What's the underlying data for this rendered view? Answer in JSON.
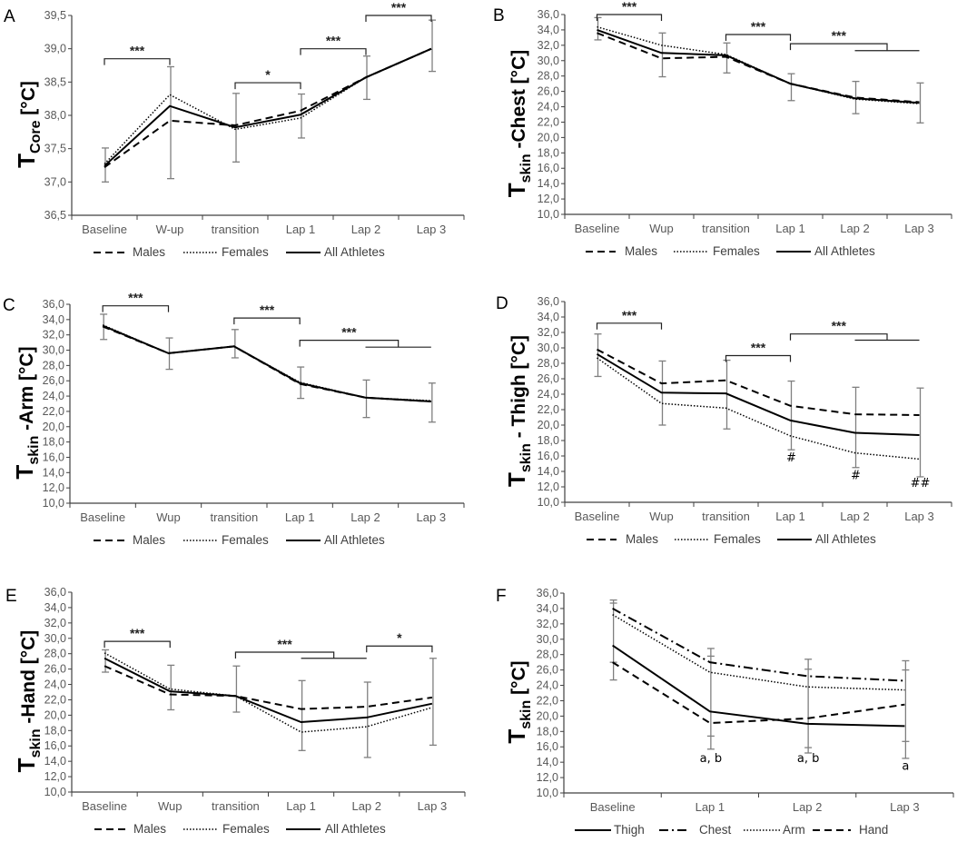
{
  "chart_data": [
    {
      "panel": "A",
      "type": "line",
      "ylabel": {
        "main": "T",
        "sub": "Core",
        "rest": " [°C]"
      },
      "ylim": [
        36.5,
        39.5
      ],
      "yticks": [
        "36,5",
        "37,0",
        "37,5",
        "38,0",
        "38,5",
        "39,0",
        "39,5"
      ],
      "categories": [
        "Baseline",
        "W-up",
        "transition",
        "Lap 1",
        "Lap 2",
        "Lap 3"
      ],
      "series": [
        {
          "name": "Males",
          "style": "dashed",
          "values": [
            37.22,
            37.92,
            37.85,
            38.07,
            38.57,
            39.0
          ]
        },
        {
          "name": "Females",
          "style": "dotted",
          "values": [
            37.27,
            38.31,
            37.79,
            37.96,
            38.57,
            39.0
          ]
        },
        {
          "name": "All Athletes",
          "style": "solid",
          "values": [
            37.24,
            38.14,
            37.82,
            38.01,
            38.57,
            39.0
          ]
        }
      ],
      "errors": [
        [
          37.0,
          37.51
        ],
        [
          37.05,
          38.73
        ],
        [
          37.3,
          38.33
        ],
        [
          37.66,
          38.32
        ],
        [
          38.24,
          38.89
        ],
        [
          38.66,
          39.43
        ]
      ],
      "brackets": [
        {
          "from": 0,
          "to": 1,
          "y": 38.85,
          "label": "***"
        },
        {
          "from": 2,
          "to": 3,
          "y": 38.49,
          "label": "*"
        },
        {
          "from": 3,
          "to": 4,
          "y": 39.0,
          "label": "***"
        },
        {
          "from": 4,
          "to": 5,
          "y": 39.5,
          "label": "***"
        }
      ],
      "annotations": []
    },
    {
      "panel": "B",
      "type": "line",
      "ylabel": {
        "main": "T",
        "sub": "skin",
        "rest": " -Chest [°C]"
      },
      "ylim": [
        10,
        36
      ],
      "yticks": [
        "10,0",
        "12,0",
        "14,0",
        "16,0",
        "18,0",
        "20,0",
        "22,0",
        "24,0",
        "26,0",
        "28,0",
        "30,0",
        "32,0",
        "34,0",
        "36,0"
      ],
      "categories": [
        "Baseline",
        "Wup",
        "transition",
        "Lap 1",
        "Lap 2",
        "Lap 3"
      ],
      "series": [
        {
          "name": "Males",
          "style": "dashed",
          "values": [
            33.6,
            30.3,
            30.5,
            27.0,
            25.2,
            24.6
          ]
        },
        {
          "name": "Females",
          "style": "dotted",
          "values": [
            34.4,
            32.0,
            30.8,
            27.0,
            25.0,
            24.4
          ]
        },
        {
          "name": "All Athletes",
          "style": "solid",
          "values": [
            34.0,
            31.0,
            30.7,
            27.0,
            25.1,
            24.5
          ]
        }
      ],
      "errors": [
        [
          32.7,
          35.6
        ],
        [
          27.9,
          33.6
        ],
        [
          28.4,
          32.3
        ],
        [
          24.8,
          28.3
        ],
        [
          23.1,
          27.3
        ],
        [
          21.9,
          27.1
        ]
      ],
      "brackets": [
        {
          "from": 0,
          "to": 1,
          "y": 36.0,
          "label": "***"
        },
        {
          "from": 2,
          "to": 3,
          "y": 33.4,
          "label": "***"
        },
        {
          "from": 3,
          "to": 4.5,
          "y": 32.2,
          "label": "***",
          "sub": {
            "from": 4,
            "to": 5,
            "y": 31.3
          }
        }
      ],
      "annotations": []
    },
    {
      "panel": "C",
      "type": "line",
      "ylabel": {
        "main": "T",
        "sub": "skin",
        "rest": " -Arm [°C]"
      },
      "ylim": [
        10,
        36
      ],
      "yticks": [
        "10,0",
        "12,0",
        "14,0",
        "16,0",
        "18,0",
        "20,0",
        "22,0",
        "24,0",
        "26,0",
        "28,0",
        "30,0",
        "32,0",
        "34,0",
        "36,0"
      ],
      "categories": [
        "Baseline",
        "Wup",
        "transition",
        "Lap 1",
        "Lap 2",
        "Lap 3"
      ],
      "series": [
        {
          "name": "Males",
          "style": "dashed",
          "values": [
            33.1,
            29.6,
            30.5,
            25.6,
            23.8,
            23.3
          ]
        },
        {
          "name": "Females",
          "style": "dotted",
          "values": [
            33.3,
            29.6,
            30.5,
            25.8,
            23.8,
            23.4
          ]
        },
        {
          "name": "All Athletes",
          "style": "solid",
          "values": [
            33.2,
            29.6,
            30.5,
            25.7,
            23.8,
            23.3
          ]
        }
      ],
      "errors": [
        [
          31.4,
          34.7
        ],
        [
          27.5,
          31.6
        ],
        [
          29.0,
          32.7
        ],
        [
          23.7,
          27.8
        ],
        [
          21.2,
          26.1
        ],
        [
          20.6,
          25.7
        ]
      ],
      "brackets": [
        {
          "from": 0,
          "to": 1,
          "y": 35.8,
          "label": "***"
        },
        {
          "from": 2,
          "to": 3,
          "y": 34.2,
          "label": "***"
        },
        {
          "from": 3,
          "to": 4.5,
          "y": 31.3,
          "label": "***",
          "sub": {
            "from": 4,
            "to": 5,
            "y": 30.4
          }
        }
      ],
      "annotations": []
    },
    {
      "panel": "D",
      "type": "line",
      "ylabel": {
        "main": "T",
        "sub": "skin",
        "rest": " - Thigh [°C]"
      },
      "ylim": [
        10,
        36
      ],
      "yticks": [
        "10,0",
        "12,0",
        "14,0",
        "16,0",
        "18,0",
        "20,0",
        "22,0",
        "24,0",
        "26,0",
        "28,0",
        "30,0",
        "32,0",
        "34,0",
        "36,0"
      ],
      "categories": [
        "Baseline",
        "Wup",
        "transition",
        "Lap 1",
        "Lap 2",
        "Lap 3"
      ],
      "series": [
        {
          "name": "Males",
          "style": "dashed",
          "values": [
            29.8,
            25.4,
            25.8,
            22.5,
            21.4,
            21.3
          ]
        },
        {
          "name": "Females",
          "style": "dotted",
          "values": [
            28.7,
            22.8,
            22.2,
            18.6,
            16.4,
            15.6
          ]
        },
        {
          "name": "All Athletes",
          "style": "solid",
          "values": [
            29.2,
            24.2,
            24.1,
            20.6,
            19.0,
            18.7
          ]
        }
      ],
      "errors": [
        [
          26.3,
          31.8
        ],
        [
          20.0,
          28.3
        ],
        [
          19.5,
          28.4
        ],
        [
          16.8,
          25.7
        ],
        [
          14.5,
          24.9
        ],
        [
          13.3,
          24.8
        ]
      ],
      "brackets": [
        {
          "from": 0,
          "to": 1,
          "y": 33.2,
          "label": "***"
        },
        {
          "from": 2,
          "to": 3,
          "y": 29.0,
          "label": "***"
        },
        {
          "from": 3,
          "to": 4.5,
          "y": 31.8,
          "label": "***",
          "sub": {
            "from": 4,
            "to": 5,
            "y": 31.0
          }
        }
      ],
      "annotations": [
        {
          "cat": 3,
          "y": 15.3,
          "text": "#"
        },
        {
          "cat": 4,
          "y": 13.0,
          "text": "#"
        },
        {
          "cat": 5,
          "y": 12.0,
          "text": "##"
        }
      ]
    },
    {
      "panel": "E",
      "type": "line",
      "ylabel": {
        "main": "T",
        "sub": "skin",
        "rest": " -Hand [°C]"
      },
      "ylim": [
        10,
        36
      ],
      "yticks": [
        "10,0",
        "12,0",
        "14,0",
        "16,0",
        "18,0",
        "20,0",
        "22,0",
        "24,0",
        "26,0",
        "28,0",
        "30,0",
        "32,0",
        "34,0",
        "36,0"
      ],
      "categories": [
        "Baseline",
        "Wup",
        "transition",
        "Lap 1",
        "Lap 2",
        "Lap 3"
      ],
      "series": [
        {
          "name": "Males",
          "style": "dashed",
          "values": [
            26.4,
            22.7,
            22.5,
            20.8,
            21.1,
            22.3
          ]
        },
        {
          "name": "Females",
          "style": "dotted",
          "values": [
            28.1,
            23.4,
            22.5,
            17.8,
            18.5,
            21.0
          ]
        },
        {
          "name": "All Athletes",
          "style": "solid",
          "values": [
            27.4,
            23.1,
            22.5,
            19.1,
            19.7,
            21.5
          ]
        }
      ],
      "errors": [
        [
          25.6,
          28.5
        ],
        [
          20.7,
          26.5
        ],
        [
          20.4,
          26.4
        ],
        [
          15.4,
          24.5
        ],
        [
          14.5,
          24.3
        ],
        [
          16.1,
          27.4
        ]
      ],
      "brackets": [
        {
          "from": 0,
          "to": 1,
          "y": 29.6,
          "label": "***"
        },
        {
          "from": 2,
          "to": 3.5,
          "y": 28.2,
          "label": "***",
          "sub": {
            "from": 3,
            "to": 4,
            "y": 27.4
          }
        },
        {
          "from": 4,
          "to": 5,
          "y": 29.0,
          "label": "*"
        }
      ],
      "annotations": []
    },
    {
      "panel": "F",
      "type": "line",
      "ylabel": {
        "main": "T",
        "sub": "skin",
        "rest": " [°C]"
      },
      "ylim": [
        10,
        36
      ],
      "yticks": [
        "10,0",
        "12,0",
        "14,0",
        "16,0",
        "18,0",
        "20,0",
        "22,0",
        "24,0",
        "26,0",
        "28,0",
        "30,0",
        "32,0",
        "34,0",
        "36,0"
      ],
      "categories": [
        "Baseline",
        "Lap 1",
        "Lap 2",
        "Lap 3"
      ],
      "series": [
        {
          "name": "Thigh",
          "style": "solid",
          "values": [
            29.2,
            20.6,
            19.0,
            18.7
          ]
        },
        {
          "name": "Chest",
          "style": "dashdot",
          "values": [
            34.0,
            27.0,
            25.2,
            24.6
          ]
        },
        {
          "name": "Arm",
          "style": "dotted",
          "values": [
            33.2,
            25.7,
            23.8,
            23.4
          ]
        },
        {
          "name": "Hand",
          "style": "dashed",
          "values": [
            27.0,
            19.1,
            19.7,
            21.5
          ]
        }
      ],
      "errors": [
        [
          24.7,
          35.1,
          34.7,
          27.0
        ],
        [
          15.7,
          28.8,
          27.8,
          17.4
        ],
        [
          15.2,
          27.4,
          26.1,
          15.9
        ],
        [
          14.5,
          27.2,
          26.0,
          16.7
        ]
      ],
      "brackets": [],
      "annotations": [
        {
          "cat": 1,
          "y": 14.0,
          "text": "a, b"
        },
        {
          "cat": 2,
          "y": 14.0,
          "text": "a, b"
        },
        {
          "cat": 3,
          "y": 13.0,
          "text": "a"
        }
      ]
    }
  ]
}
